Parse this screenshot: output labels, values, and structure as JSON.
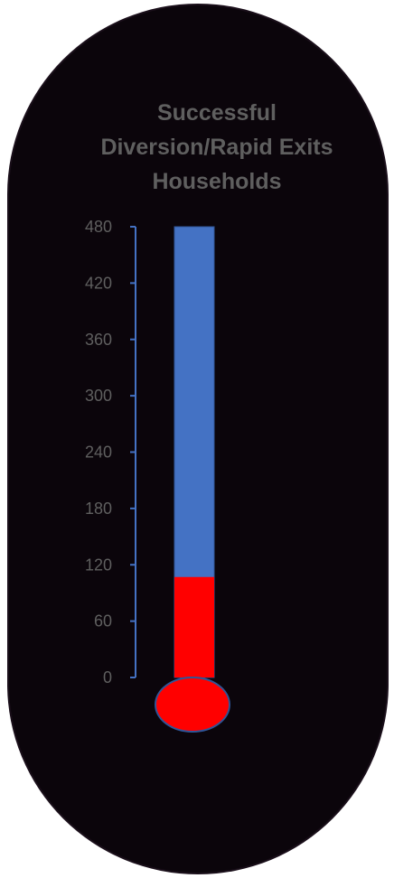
{
  "chart_data": {
    "type": "bar",
    "title_lines": [
      "Successful",
      "Diversion/Rapid Exits",
      "Households"
    ],
    "categories": [
      "Successful Diversion/Rapid Exits Households"
    ],
    "series": [
      {
        "role": "current",
        "values": [
          107
        ]
      },
      {
        "role": "goal",
        "values": [
          480
        ]
      }
    ],
    "ylim": [
      0,
      480
    ],
    "yticks": [
      0,
      60,
      120,
      180,
      240,
      300,
      360,
      420,
      480
    ],
    "grid": false,
    "legend": "none"
  },
  "colors": {
    "background": "#0b050b",
    "goal_fill": "#4472c4",
    "goal_stroke": "#2f5597",
    "current_fill": "#ff0000",
    "axis": "#4472c4",
    "text": "#5f5f5f"
  }
}
